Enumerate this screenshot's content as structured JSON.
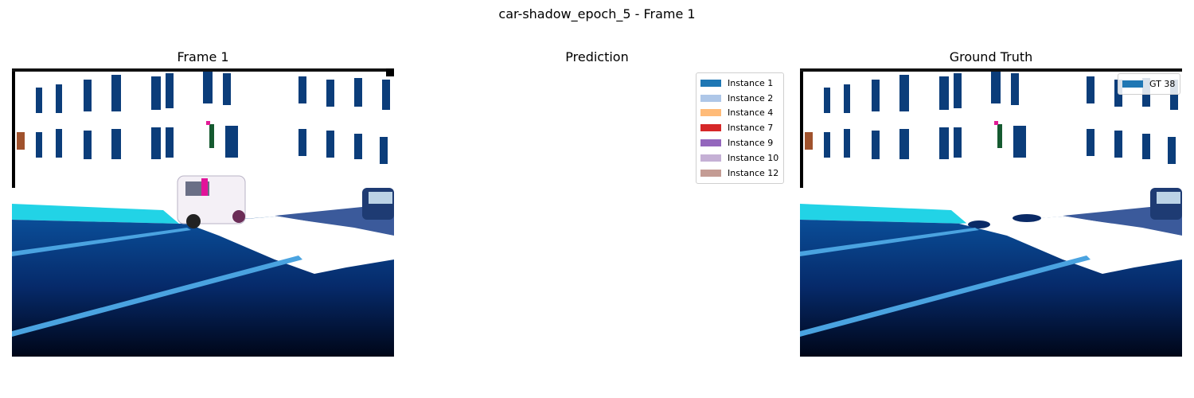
{
  "figure": {
    "suptitle": "car-shadow_epoch_5 - Frame 1"
  },
  "panels": {
    "frame": {
      "title": "Frame 1"
    },
    "prediction": {
      "title": "Prediction",
      "legend": [
        {
          "label": "Instance 1",
          "color": "#1f77b4"
        },
        {
          "label": "Instance 2",
          "color": "#aec7e8"
        },
        {
          "label": "Instance 4",
          "color": "#ffbb78"
        },
        {
          "label": "Instance 7",
          "color": "#d62728"
        },
        {
          "label": "Instance 9",
          "color": "#9467bd"
        },
        {
          "label": "Instance 10",
          "color": "#c5b0d5"
        },
        {
          "label": "Instance 12",
          "color": "#c49c94"
        }
      ]
    },
    "ground_truth": {
      "title": "Ground Truth",
      "legend": [
        {
          "label": "GT 38",
          "color": "#1f77b4"
        }
      ]
    }
  }
}
